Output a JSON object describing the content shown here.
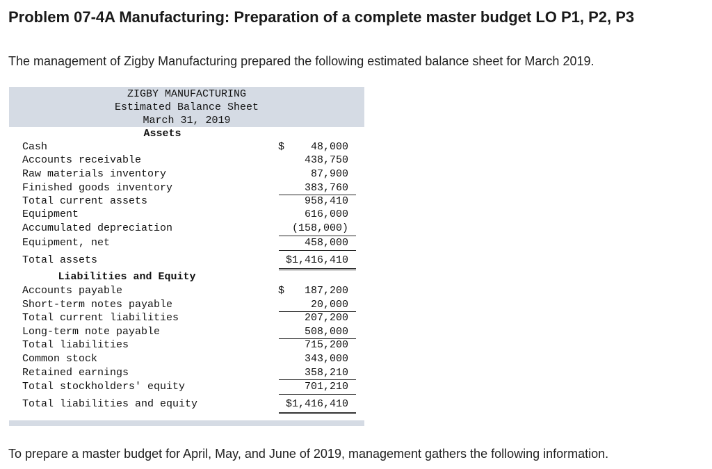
{
  "heading": "Problem 07-4A Manufacturing: Preparation of a complete master budget LO P1, P2, P3",
  "intro": "The management of Zigby Manufacturing prepared the following estimated balance sheet for March 2019.",
  "balance_sheet": {
    "company": "ZIGBY MANUFACTURING",
    "statement": "Estimated Balance Sheet",
    "date": "March 31, 2019",
    "assets_heading": "Assets",
    "liabilities_heading": "Liabilities and Equity",
    "dollar_sign": "$",
    "assets": [
      {
        "label": "Cash",
        "amount": "48,000"
      },
      {
        "label": "Accounts receivable",
        "amount": "438,750"
      },
      {
        "label": "Raw materials inventory",
        "amount": "87,900"
      },
      {
        "label": "Finished goods inventory",
        "amount": "383,760"
      },
      {
        "label": "Total current assets",
        "amount": "958,410"
      },
      {
        "label": "Equipment",
        "amount": "616,000"
      },
      {
        "label": "Accumulated depreciation",
        "amount": "(158,000)"
      },
      {
        "label": "Equipment, net",
        "amount": "458,000"
      },
      {
        "label": "Total assets",
        "amount": "$1,416,410"
      }
    ],
    "liabilities": [
      {
        "label": "Accounts payable",
        "amount": "187,200"
      },
      {
        "label": "Short-term notes payable",
        "amount": "20,000"
      },
      {
        "label": "Total current liabilities",
        "amount": "207,200"
      },
      {
        "label": "Long-term note payable",
        "amount": "508,000"
      },
      {
        "label": "Total liabilities",
        "amount": "715,200"
      },
      {
        "label": "Common stock",
        "amount": "343,000"
      },
      {
        "label": "Retained earnings",
        "amount": "358,210"
      },
      {
        "label": "Total stockholders' equity",
        "amount": "701,210"
      },
      {
        "label": "Total liabilities and equity",
        "amount": "$1,416,410"
      }
    ]
  },
  "outro": "To prepare a master budget for April, May, and June of 2019, management gathers the following information."
}
